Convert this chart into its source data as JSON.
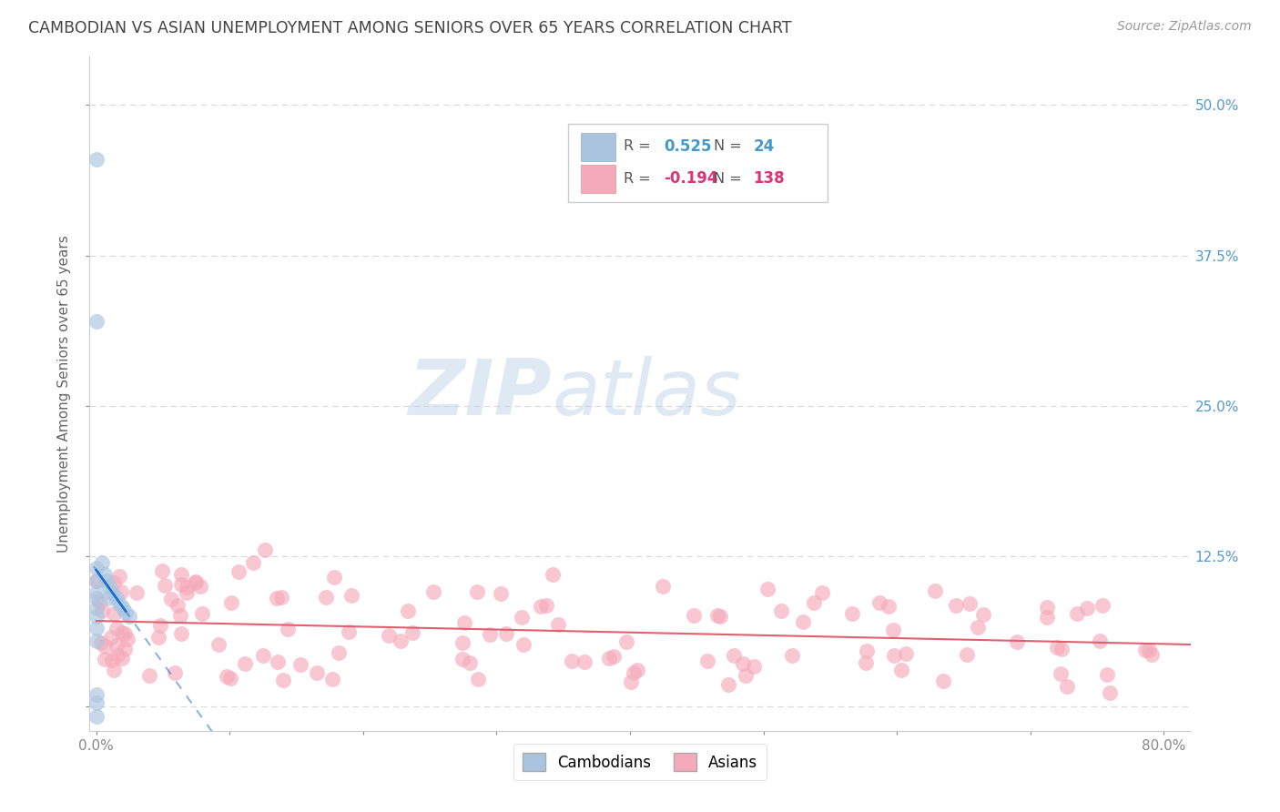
{
  "title": "CAMBODIAN VS ASIAN UNEMPLOYMENT AMONG SENIORS OVER 65 YEARS CORRELATION CHART",
  "source_text": "Source: ZipAtlas.com",
  "ylabel": "Unemployment Among Seniors over 65 years",
  "xlim": [
    -0.005,
    0.82
  ],
  "ylim": [
    -0.02,
    0.54
  ],
  "xticks": [
    0.0,
    0.1,
    0.2,
    0.3,
    0.4,
    0.5,
    0.6,
    0.7,
    0.8
  ],
  "xticklabels": [
    "0.0%",
    "",
    "",
    "",
    "",
    "",
    "",
    "",
    "80.0%"
  ],
  "yticks": [
    0.0,
    0.125,
    0.25,
    0.375,
    0.5
  ],
  "yticklabels": [
    "",
    "12.5%",
    "25.0%",
    "37.5%",
    "50.0%"
  ],
  "cambodian_color": "#aac4df",
  "asian_color": "#f5aabb",
  "trend_cambodian_color": "#1a6fcc",
  "trend_asian_color": "#e06070",
  "legend_cambodian_label": "Cambodians",
  "legend_asian_label": "Asians",
  "R_cambodian": 0.525,
  "N_cambodian": 24,
  "R_asian": -0.194,
  "N_asian": 138,
  "watermark_zip": "ZIP",
  "watermark_atlas": "atlas",
  "background_color": "#ffffff",
  "grid_color": "#d8d8d8",
  "tick_color": "#888888",
  "ylabel_color": "#666666",
  "ytick_color": "#5599cc",
  "title_color": "#444444",
  "source_color": "#999999",
  "stats_text_color": "#555555",
  "stats_blue_color": "#4499cc",
  "stats_pink_color": "#dd3377"
}
